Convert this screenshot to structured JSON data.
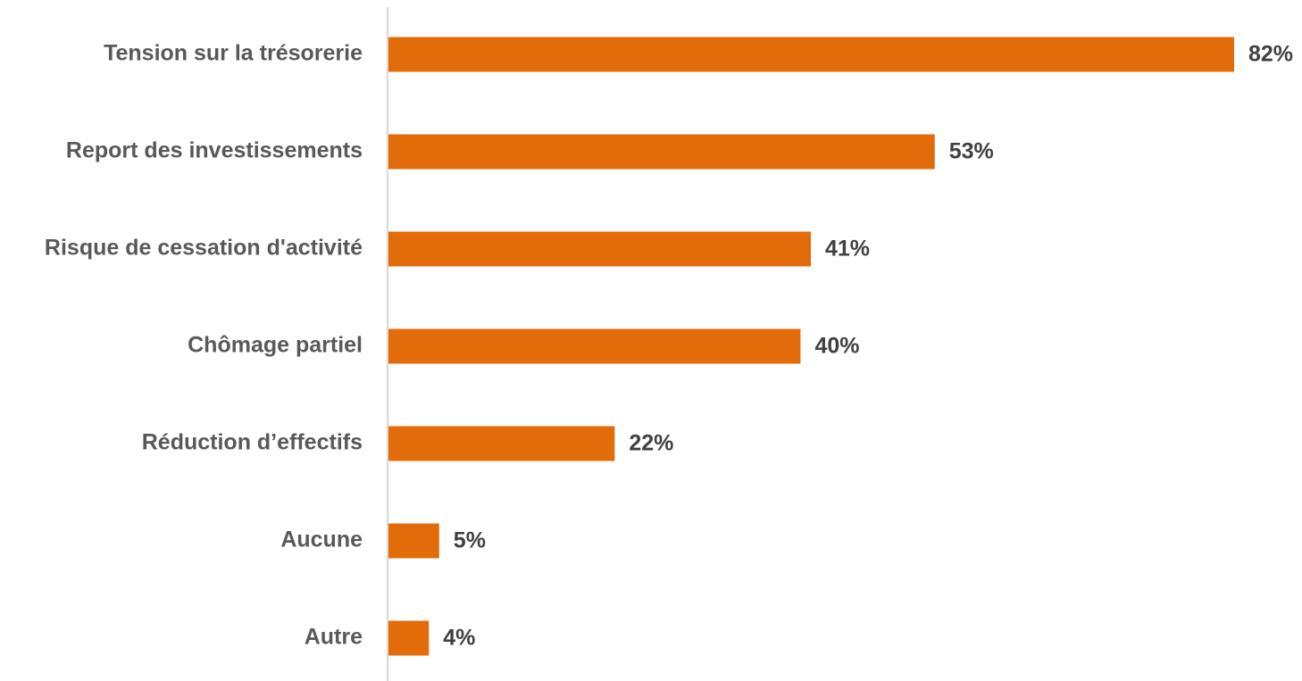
{
  "chart_data": {
    "type": "bar",
    "orientation": "horizontal",
    "categories": [
      "Tension sur la trésorerie",
      "Report des investissements",
      "Risque de cessation d'activité",
      "Chômage partiel",
      "Réduction d’effectifs",
      "Aucune",
      "Autre"
    ],
    "values": [
      82,
      53,
      41,
      40,
      22,
      5,
      4
    ],
    "value_labels": [
      "82%",
      "53%",
      "41%",
      "40%",
      "22%",
      "5%",
      "4%"
    ],
    "unit": "%",
    "xlim": [
      0,
      82
    ],
    "title": "",
    "xlabel": "",
    "ylabel": "",
    "grid": false,
    "legend": "none",
    "bar_color": "#E36C0A",
    "axis_color": "#D9D9D9"
  }
}
